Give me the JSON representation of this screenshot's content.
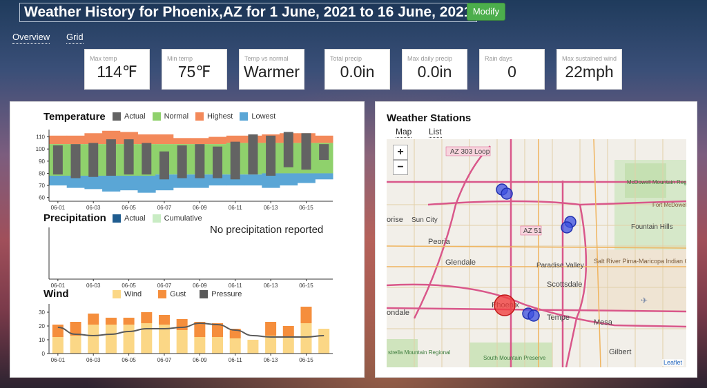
{
  "header": {
    "title": "Weather History for Phoenix,AZ for 1 June, 2021 to 16 June, 2021",
    "modify_label": "Modify"
  },
  "nav": {
    "overview": "Overview",
    "grid": "Grid"
  },
  "stats": [
    {
      "label": "Max temp",
      "value": "114℉"
    },
    {
      "label": "Min temp",
      "value": "75℉"
    },
    {
      "label": "Temp vs normal",
      "value": "Warmer"
    },
    {
      "label": "Total precip",
      "value": "0.0in"
    },
    {
      "label": "Max daily precip",
      "value": "0.0in"
    },
    {
      "label": "Rain days",
      "value": "0"
    },
    {
      "label": "Max sustained wind",
      "value": "22mph"
    }
  ],
  "colors": {
    "actual": "#636363",
    "normal": "#8fd16c",
    "highest": "#f3895a",
    "lowest": "#5aa6d6",
    "precip_actual": "#1f5c8f",
    "precip_cum": "#c9ecc4",
    "wind": "#fbd786",
    "gust": "#f58e3c",
    "pressure": "#595959",
    "station": "#3b4fe0",
    "city": "#f04040"
  },
  "temperature": {
    "title": "Temperature",
    "legend": [
      "Actual",
      "Normal",
      "Highest",
      "Lowest"
    ]
  },
  "precipitation": {
    "title": "Precipitation",
    "legend": [
      "Actual",
      "Cumulative"
    ],
    "empty_message": "No precipitation reported"
  },
  "wind": {
    "title": "Wind",
    "legend": [
      "Wind",
      "Gust",
      "Pressure"
    ]
  },
  "chart_data": [
    {
      "type": "bar",
      "title": "Temperature",
      "categories": [
        "06-01",
        "06-02",
        "06-03",
        "06-04",
        "06-05",
        "06-06",
        "06-07",
        "06-08",
        "06-09",
        "06-10",
        "06-11",
        "06-12",
        "06-13",
        "06-14",
        "06-15",
        "06-16"
      ],
      "xticks": [
        "06-01",
        "06-03",
        "06-05",
        "06-07",
        "06-09",
        "06-11",
        "06-13",
        "06-15"
      ],
      "yticks": [
        60,
        70,
        80,
        90,
        100,
        110
      ],
      "ylim": [
        57,
        116
      ],
      "series": [
        {
          "name": "Actual high",
          "values": [
            103,
            104,
            105,
            108,
            108,
            105,
            98,
            103,
            104,
            102,
            106,
            112,
            111,
            114,
            113,
            104
          ]
        },
        {
          "name": "Actual low",
          "values": [
            79,
            76,
            77,
            78,
            79,
            79,
            75,
            76,
            76,
            76,
            75,
            79,
            78,
            85,
            83,
            91
          ]
        },
        {
          "name": "Normal high",
          "values": [
            104,
            104,
            104,
            104,
            104,
            104,
            104,
            104,
            104,
            104,
            105,
            105,
            105,
            105,
            105,
            105
          ]
        },
        {
          "name": "Normal low",
          "values": [
            78,
            78,
            78,
            78,
            78,
            78,
            79,
            79,
            79,
            79,
            79,
            79,
            80,
            80,
            80,
            80
          ]
        },
        {
          "name": "Highest",
          "values": [
            111,
            111,
            113,
            115,
            114,
            112,
            112,
            109,
            109,
            110,
            111,
            111,
            112,
            113,
            113,
            111
          ]
        },
        {
          "name": "Lowest",
          "values": [
            70,
            68,
            67,
            65,
            66,
            64,
            66,
            68,
            68,
            70,
            70,
            70,
            68,
            70,
            72,
            75
          ]
        }
      ]
    },
    {
      "type": "bar",
      "title": "Precipitation",
      "categories": [
        "06-01",
        "06-02",
        "06-03",
        "06-04",
        "06-05",
        "06-06",
        "06-07",
        "06-08",
        "06-09",
        "06-10",
        "06-11",
        "06-12",
        "06-13",
        "06-14",
        "06-15",
        "06-16"
      ],
      "xticks": [
        "06-01",
        "06-03",
        "06-05",
        "06-07",
        "06-09",
        "06-11",
        "06-13",
        "06-15"
      ],
      "series": [
        {
          "name": "Actual",
          "values": [
            0,
            0,
            0,
            0,
            0,
            0,
            0,
            0,
            0,
            0,
            0,
            0,
            0,
            0,
            0,
            0
          ]
        },
        {
          "name": "Cumulative",
          "values": [
            0,
            0,
            0,
            0,
            0,
            0,
            0,
            0,
            0,
            0,
            0,
            0,
            0,
            0,
            0,
            0
          ]
        }
      ]
    },
    {
      "type": "bar",
      "title": "Wind",
      "categories": [
        "06-01",
        "06-02",
        "06-03",
        "06-04",
        "06-05",
        "06-06",
        "06-07",
        "06-08",
        "06-09",
        "06-10",
        "06-11",
        "06-12",
        "06-13",
        "06-14",
        "06-15",
        "06-16"
      ],
      "xticks": [
        "06-01",
        "06-03",
        "06-05",
        "06-07",
        "06-09",
        "06-11",
        "06-13",
        "06-15"
      ],
      "yticks": [
        0,
        10,
        20,
        30
      ],
      "ylim": [
        0,
        36
      ],
      "series": [
        {
          "name": "Wind",
          "values": [
            12,
            13,
            21,
            21,
            21,
            22,
            21,
            17,
            12,
            12,
            11,
            10,
            13,
            12,
            22,
            18
          ]
        },
        {
          "name": "Gust",
          "values": [
            21,
            23,
            29,
            26,
            26,
            30,
            28,
            25,
            23,
            22,
            18,
            0,
            23,
            20,
            34,
            0
          ]
        },
        {
          "name": "Pressure",
          "values": [
            19,
            14,
            13,
            14,
            16,
            18,
            18,
            19,
            22,
            21,
            17,
            13,
            12,
            12,
            12,
            13
          ]
        }
      ]
    }
  ],
  "map": {
    "title": "Weather Stations",
    "tabs": [
      "Map",
      "List"
    ],
    "zoom_in": "+",
    "zoom_out": "−",
    "attribution": "Leaflet",
    "labels": [
      "AZ 303 Loop",
      "Sun City",
      "Peoria",
      "Glendale",
      "AZ 51",
      "Paradise Valley",
      "Scottsdale",
      "Phoenix",
      "Tempe",
      "Mesa",
      "Gilbert",
      "Fountain Hills",
      "McDowell Mountain Regional Park",
      "Salt River Pima-Maricopa Indian Community",
      "South Mountain Preserve",
      "Fort McDowell Yavapai Nation",
      "ondale",
      "orise",
      "strella Mountain Regional"
    ]
  }
}
